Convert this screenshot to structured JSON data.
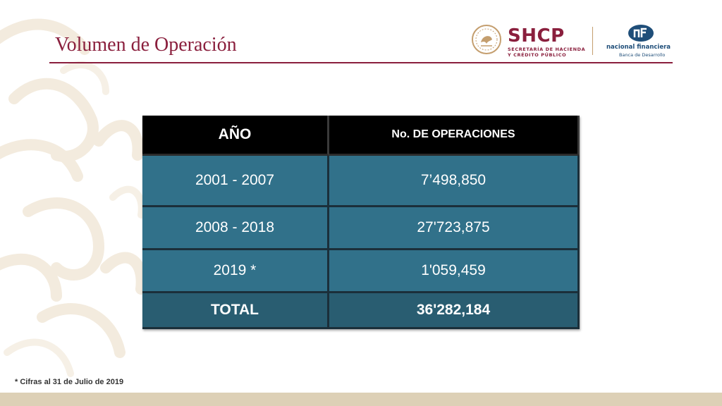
{
  "slide": {
    "title": "Volumen de Operación",
    "footnote": "* Cifras al 31 de Julio de 2019"
  },
  "logos": {
    "shcp": {
      "name": "SHCP",
      "subtitle_line1": "SECRETARÍA DE HACIENDA",
      "subtitle_line2": "Y CRÉDITO PÚBLICO",
      "seal_icon": "mexican-eagle-seal-icon"
    },
    "nafin": {
      "name": "nacional financiera",
      "subtitle": "Banca de Desarrollo",
      "mark_icon": "nafin-mark-icon"
    }
  },
  "table": {
    "headers": [
      "AÑO",
      "No. DE OPERACIONES"
    ],
    "rows": [
      {
        "year": "2001 - 2007",
        "operations": "7’498,850"
      },
      {
        "year": "2008 - 2018",
        "operations": "27'723,875"
      },
      {
        "year": "2019 *",
        "operations": "1'059,459"
      }
    ],
    "total": {
      "label": "TOTAL",
      "value": "36'282,184"
    }
  },
  "colors": {
    "accent": "#8a1f3d",
    "table_header": "#000000",
    "table_cell": "#31718a",
    "table_total": "#295d71",
    "band": "#ddd0b6",
    "nafin_blue": "#1f4e79"
  }
}
